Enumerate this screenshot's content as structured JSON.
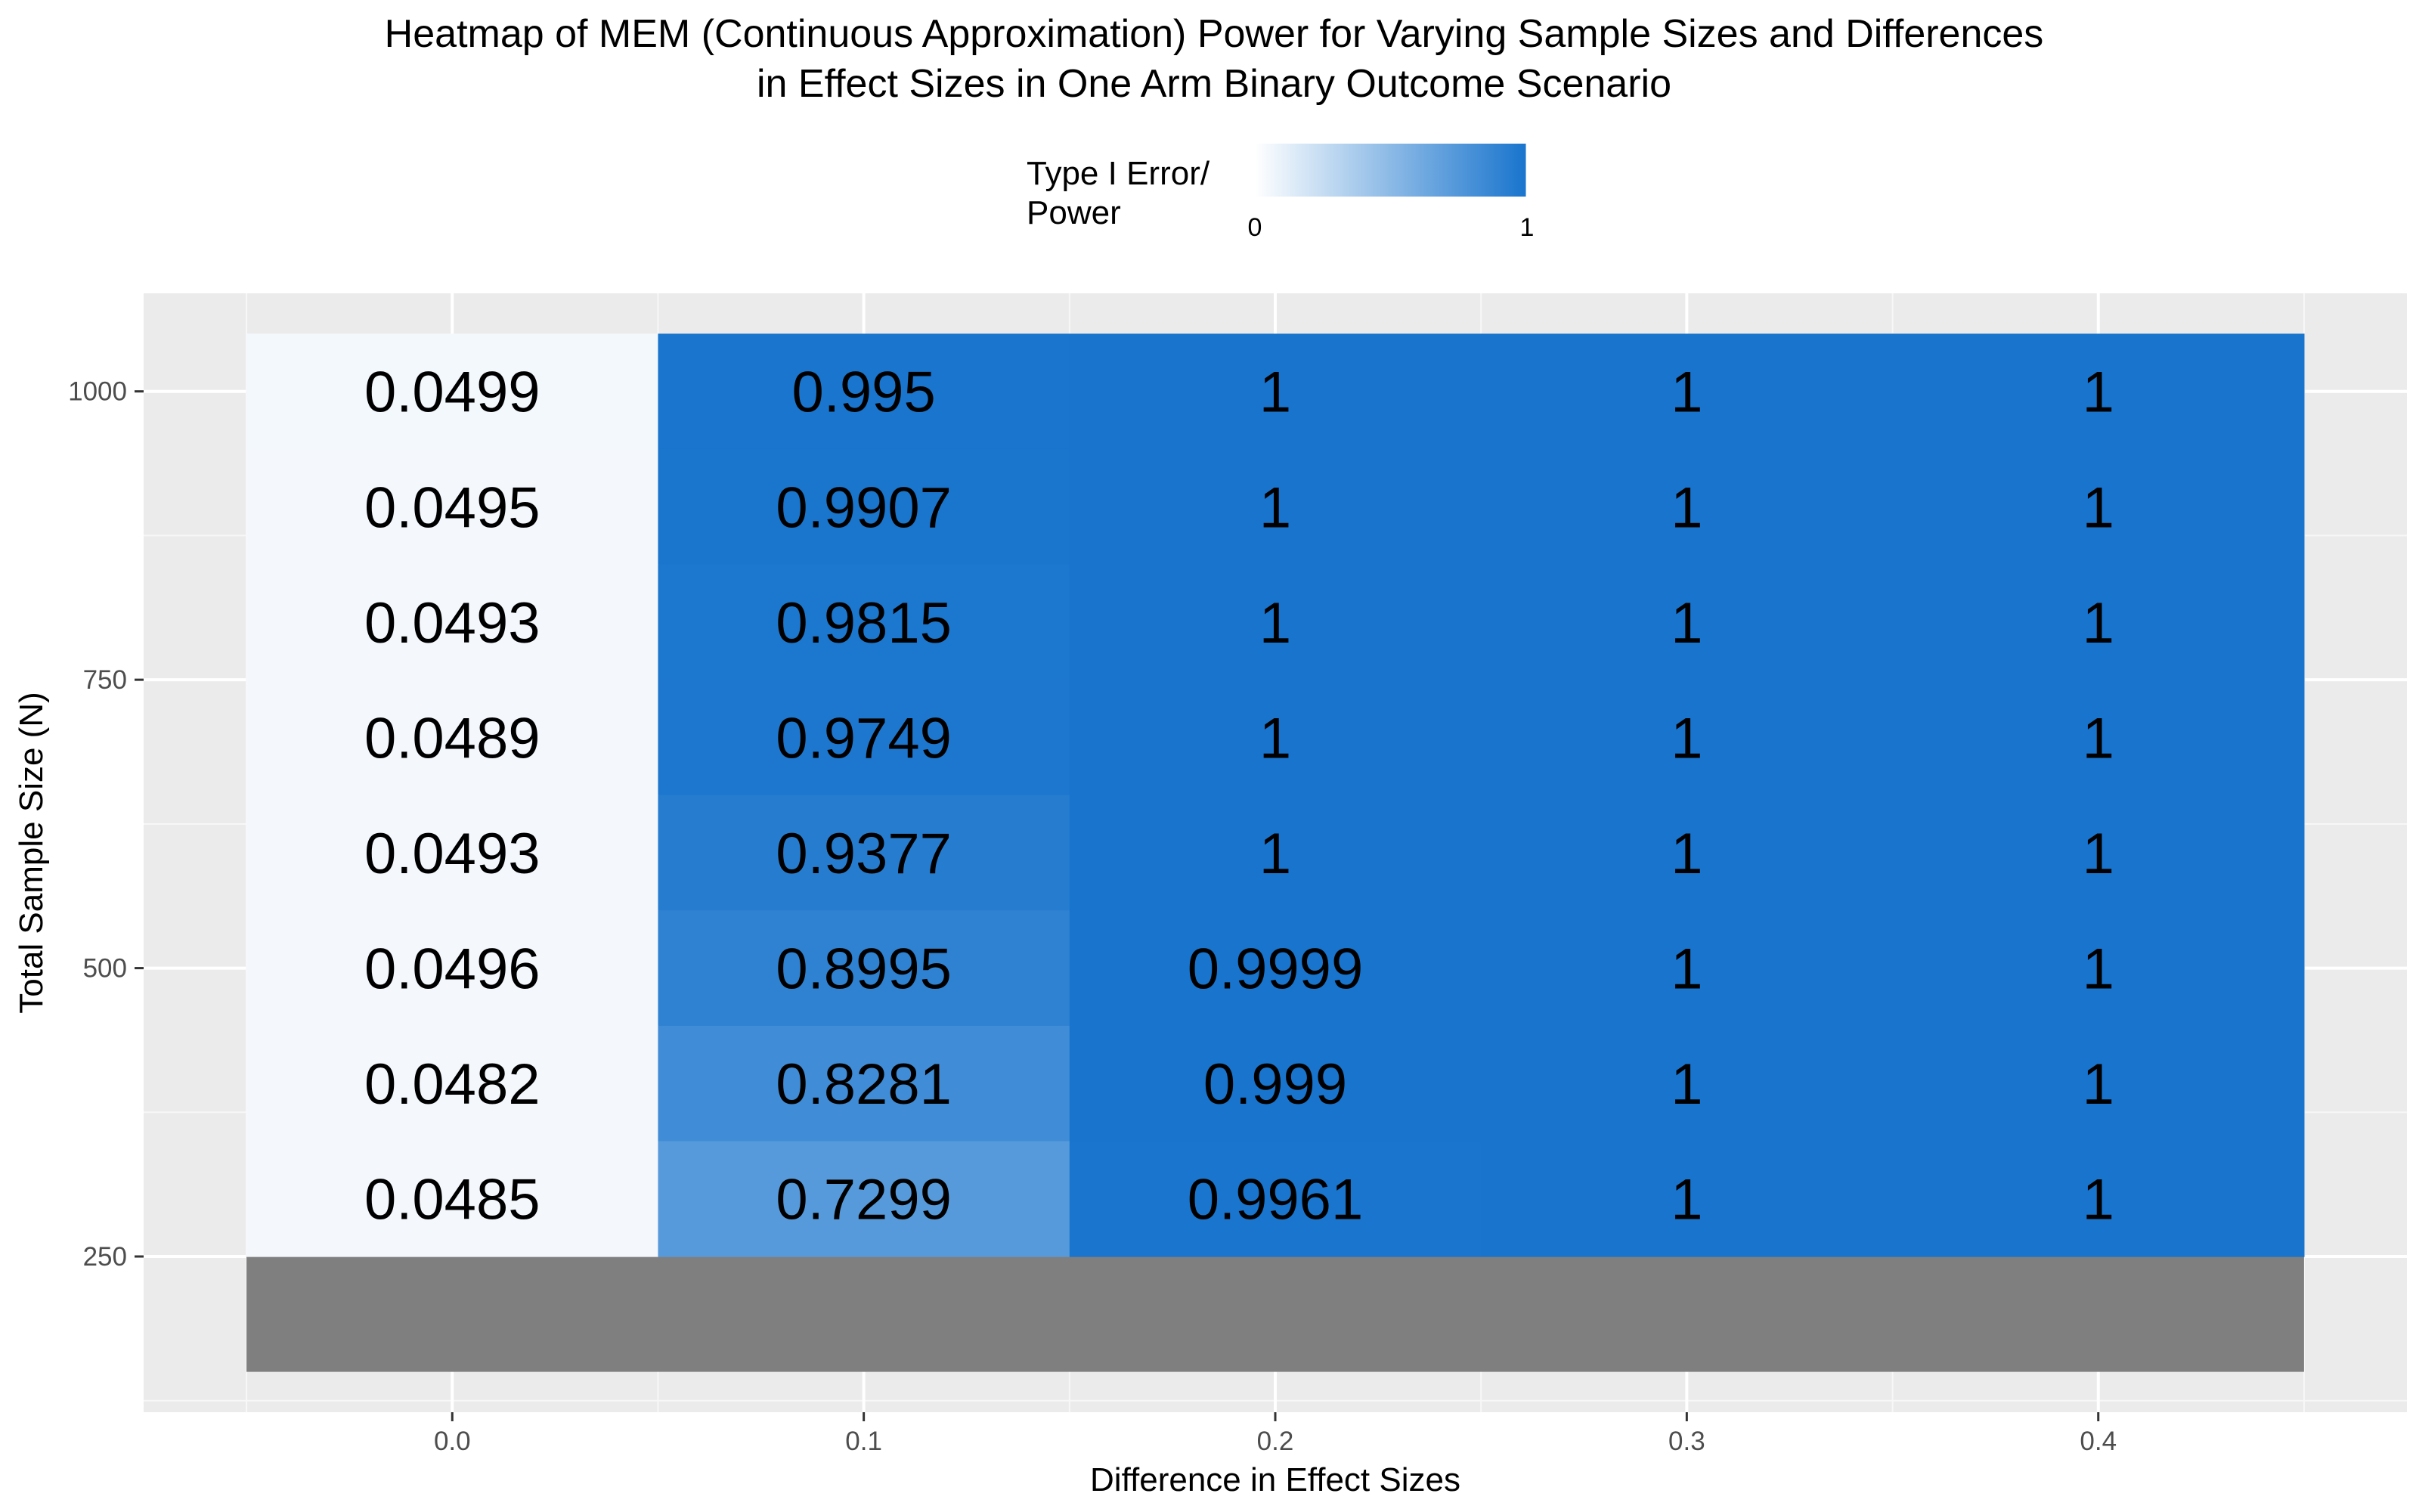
{
  "chart_data": {
    "type": "heatmap",
    "title": "Heatmap of MEM (Continuous Approximation) Power for Varying Sample Sizes and Differences in Effect Sizes in One Arm Binary Outcome Scenario",
    "title_lines": [
      "Heatmap of MEM (Continuous Approximation) Power for Varying Sample Sizes and Differences",
      "in Effect Sizes in One Arm Binary Outcome Scenario"
    ],
    "xlabel": "Difference in Effect Sizes",
    "ylabel": "Total Sample Size (N)",
    "x_ticks": [
      "0.0",
      "0.1",
      "0.2",
      "0.3",
      "0.4"
    ],
    "x_values": [
      0.0,
      0.1,
      0.2,
      0.3,
      0.4
    ],
    "y_ticks": [
      250,
      500,
      750,
      1000
    ],
    "y_tick_labels": [
      "250",
      "500",
      "750",
      "1000"
    ],
    "y_values": [
      300,
      400,
      500,
      600,
      700,
      800,
      900,
      1000
    ],
    "xlim": [
      -0.075,
      0.475
    ],
    "ylim": [
      115,
      1085
    ],
    "grid": true,
    "legend": {
      "title_lines": [
        "Type I Error/",
        "Power"
      ],
      "min": 0,
      "max": 1,
      "min_label": "0",
      "max_label": "1",
      "low_color": "#ffffff",
      "high_color": "#1874cd",
      "placement": "top"
    },
    "na_row": {
      "y": 200,
      "color": "#7f7f7f"
    },
    "cells": [
      {
        "x": 0.0,
        "y": 1000,
        "value": 0.0499,
        "label": "0.0499"
      },
      {
        "x": 0.1,
        "y": 1000,
        "value": 0.995,
        "label": "0.995"
      },
      {
        "x": 0.2,
        "y": 1000,
        "value": 1,
        "label": "1"
      },
      {
        "x": 0.3,
        "y": 1000,
        "value": 1,
        "label": "1"
      },
      {
        "x": 0.4,
        "y": 1000,
        "value": 1,
        "label": "1"
      },
      {
        "x": 0.0,
        "y": 900,
        "value": 0.0495,
        "label": "0.0495"
      },
      {
        "x": 0.1,
        "y": 900,
        "value": 0.9907,
        "label": "0.9907"
      },
      {
        "x": 0.2,
        "y": 900,
        "value": 1,
        "label": "1"
      },
      {
        "x": 0.3,
        "y": 900,
        "value": 1,
        "label": "1"
      },
      {
        "x": 0.4,
        "y": 900,
        "value": 1,
        "label": "1"
      },
      {
        "x": 0.0,
        "y": 800,
        "value": 0.0493,
        "label": "0.0493"
      },
      {
        "x": 0.1,
        "y": 800,
        "value": 0.9815,
        "label": "0.9815"
      },
      {
        "x": 0.2,
        "y": 800,
        "value": 1,
        "label": "1"
      },
      {
        "x": 0.3,
        "y": 800,
        "value": 1,
        "label": "1"
      },
      {
        "x": 0.4,
        "y": 800,
        "value": 1,
        "label": "1"
      },
      {
        "x": 0.0,
        "y": 700,
        "value": 0.0489,
        "label": "0.0489"
      },
      {
        "x": 0.1,
        "y": 700,
        "value": 0.9749,
        "label": "0.9749"
      },
      {
        "x": 0.2,
        "y": 700,
        "value": 1,
        "label": "1"
      },
      {
        "x": 0.3,
        "y": 700,
        "value": 1,
        "label": "1"
      },
      {
        "x": 0.4,
        "y": 700,
        "value": 1,
        "label": "1"
      },
      {
        "x": 0.0,
        "y": 600,
        "value": 0.0493,
        "label": "0.0493"
      },
      {
        "x": 0.1,
        "y": 600,
        "value": 0.9377,
        "label": "0.9377"
      },
      {
        "x": 0.2,
        "y": 600,
        "value": 1,
        "label": "1"
      },
      {
        "x": 0.3,
        "y": 600,
        "value": 1,
        "label": "1"
      },
      {
        "x": 0.4,
        "y": 600,
        "value": 1,
        "label": "1"
      },
      {
        "x": 0.0,
        "y": 500,
        "value": 0.0496,
        "label": "0.0496"
      },
      {
        "x": 0.1,
        "y": 500,
        "value": 0.8995,
        "label": "0.8995"
      },
      {
        "x": 0.2,
        "y": 500,
        "value": 0.9999,
        "label": "0.9999"
      },
      {
        "x": 0.3,
        "y": 500,
        "value": 1,
        "label": "1"
      },
      {
        "x": 0.4,
        "y": 500,
        "value": 1,
        "label": "1"
      },
      {
        "x": 0.0,
        "y": 400,
        "value": 0.0482,
        "label": "0.0482"
      },
      {
        "x": 0.1,
        "y": 400,
        "value": 0.8281,
        "label": "0.8281"
      },
      {
        "x": 0.2,
        "y": 400,
        "value": 0.999,
        "label": "0.999"
      },
      {
        "x": 0.3,
        "y": 400,
        "value": 1,
        "label": "1"
      },
      {
        "x": 0.4,
        "y": 400,
        "value": 1,
        "label": "1"
      },
      {
        "x": 0.0,
        "y": 300,
        "value": 0.0485,
        "label": "0.0485"
      },
      {
        "x": 0.1,
        "y": 300,
        "value": 0.7299,
        "label": "0.7299"
      },
      {
        "x": 0.2,
        "y": 300,
        "value": 0.9961,
        "label": "0.9961"
      },
      {
        "x": 0.3,
        "y": 300,
        "value": 1,
        "label": "1"
      },
      {
        "x": 0.4,
        "y": 300,
        "value": 1,
        "label": "1"
      }
    ]
  }
}
